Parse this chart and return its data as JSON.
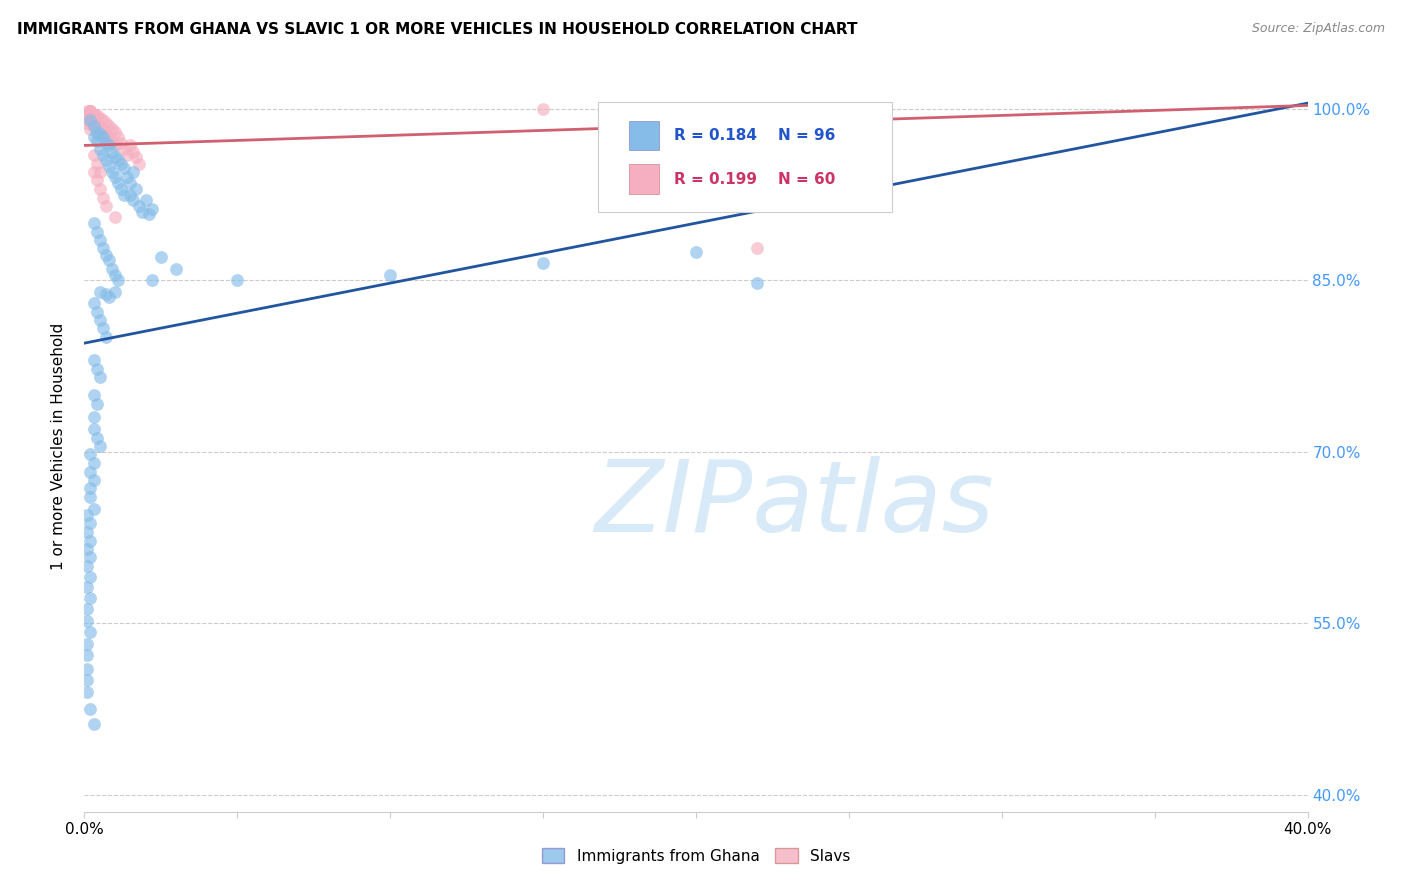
{
  "title": "IMMIGRANTS FROM GHANA VS SLAVIC 1 OR MORE VEHICLES IN HOUSEHOLD CORRELATION CHART",
  "source": "Source: ZipAtlas.com",
  "ylabel": "1 or more Vehicles in Household",
  "xlim": [
    0.0,
    0.4
  ],
  "ylim": [
    0.385,
    1.025
  ],
  "ytick_vals": [
    0.4,
    0.55,
    0.7,
    0.85,
    1.0
  ],
  "xtick_vals": [
    0.0,
    0.05,
    0.1,
    0.15,
    0.2,
    0.25,
    0.3,
    0.35,
    0.4
  ],
  "legend_ghana": "Immigrants from Ghana",
  "legend_slavs": "Slavs",
  "R_ghana": 0.184,
  "N_ghana": 96,
  "R_slavs": 0.199,
  "N_slavs": 60,
  "color_ghana": "#85bce8",
  "color_slavs": "#f5afc0",
  "line_color_ghana": "#2255a0",
  "line_color_slavs": "#d06070",
  "watermark": "ZIPatlas",
  "watermark_color": "#d8eaf8",
  "ghana_line_y0": 0.795,
  "ghana_line_y1": 1.005,
  "slavs_line_y0": 0.968,
  "slavs_line_y1": 1.003,
  "ghana_x": [
    0.002,
    0.003,
    0.003,
    0.004,
    0.004,
    0.005,
    0.005,
    0.006,
    0.006,
    0.007,
    0.007,
    0.008,
    0.008,
    0.009,
    0.009,
    0.01,
    0.01,
    0.011,
    0.011,
    0.012,
    0.012,
    0.013,
    0.013,
    0.014,
    0.015,
    0.015,
    0.016,
    0.016,
    0.017,
    0.018,
    0.019,
    0.02,
    0.021,
    0.022,
    0.003,
    0.004,
    0.005,
    0.006,
    0.007,
    0.008,
    0.009,
    0.01,
    0.011,
    0.003,
    0.004,
    0.005,
    0.006,
    0.007,
    0.003,
    0.004,
    0.005,
    0.003,
    0.004,
    0.003,
    0.003,
    0.004,
    0.005,
    0.002,
    0.003,
    0.002,
    0.003,
    0.002,
    0.002,
    0.003,
    0.001,
    0.002,
    0.001,
    0.002,
    0.001,
    0.002,
    0.001,
    0.002,
    0.001,
    0.002,
    0.001,
    0.001,
    0.002,
    0.001,
    0.001,
    0.001,
    0.001,
    0.001,
    0.002,
    0.003,
    0.025,
    0.03,
    0.022,
    0.05,
    0.1,
    0.15,
    0.2,
    0.22,
    0.005,
    0.007,
    0.008,
    0.01
  ],
  "ghana_y": [
    0.99,
    0.985,
    0.975,
    0.98,
    0.972,
    0.978,
    0.965,
    0.975,
    0.96,
    0.97,
    0.955,
    0.968,
    0.95,
    0.962,
    0.945,
    0.958,
    0.94,
    0.955,
    0.935,
    0.952,
    0.93,
    0.948,
    0.925,
    0.94,
    0.935,
    0.925,
    0.945,
    0.92,
    0.93,
    0.915,
    0.91,
    0.92,
    0.908,
    0.912,
    0.9,
    0.892,
    0.885,
    0.878,
    0.872,
    0.868,
    0.86,
    0.855,
    0.85,
    0.83,
    0.822,
    0.815,
    0.808,
    0.8,
    0.78,
    0.772,
    0.765,
    0.75,
    0.742,
    0.73,
    0.72,
    0.712,
    0.705,
    0.698,
    0.69,
    0.682,
    0.675,
    0.668,
    0.66,
    0.65,
    0.645,
    0.638,
    0.63,
    0.622,
    0.615,
    0.608,
    0.6,
    0.59,
    0.582,
    0.572,
    0.562,
    0.552,
    0.542,
    0.532,
    0.522,
    0.51,
    0.5,
    0.49,
    0.475,
    0.462,
    0.87,
    0.86,
    0.85,
    0.85,
    0.855,
    0.865,
    0.875,
    0.848,
    0.84,
    0.838,
    0.835,
    0.84
  ],
  "slavs_x": [
    0.002,
    0.003,
    0.003,
    0.004,
    0.004,
    0.005,
    0.005,
    0.006,
    0.006,
    0.007,
    0.007,
    0.008,
    0.008,
    0.009,
    0.009,
    0.01,
    0.01,
    0.011,
    0.012,
    0.013,
    0.014,
    0.015,
    0.016,
    0.017,
    0.018,
    0.003,
    0.004,
    0.005,
    0.006,
    0.007,
    0.003,
    0.004,
    0.005,
    0.003,
    0.004,
    0.003,
    0.003,
    0.004,
    0.002,
    0.003,
    0.002,
    0.003,
    0.002,
    0.002,
    0.003,
    0.002,
    0.003,
    0.002,
    0.002,
    0.003,
    0.004,
    0.005,
    0.006,
    0.15,
    0.001,
    0.002,
    0.001,
    0.001,
    0.22,
    0.01
  ],
  "slavs_y": [
    0.998,
    0.995,
    0.99,
    0.995,
    0.988,
    0.992,
    0.985,
    0.99,
    0.982,
    0.988,
    0.978,
    0.985,
    0.975,
    0.982,
    0.972,
    0.98,
    0.968,
    0.975,
    0.97,
    0.965,
    0.96,
    0.968,
    0.962,
    0.958,
    0.952,
    0.945,
    0.938,
    0.93,
    0.922,
    0.915,
    0.96,
    0.952,
    0.945,
    0.985,
    0.978,
    0.995,
    0.992,
    0.988,
    0.998,
    0.995,
    0.99,
    0.985,
    0.998,
    0.995,
    0.992,
    0.988,
    0.985,
    0.982,
    0.998,
    0.995,
    0.99,
    0.985,
    0.98,
    1.0,
    0.998,
    0.995,
    0.992,
    0.988,
    0.878,
    0.905
  ]
}
